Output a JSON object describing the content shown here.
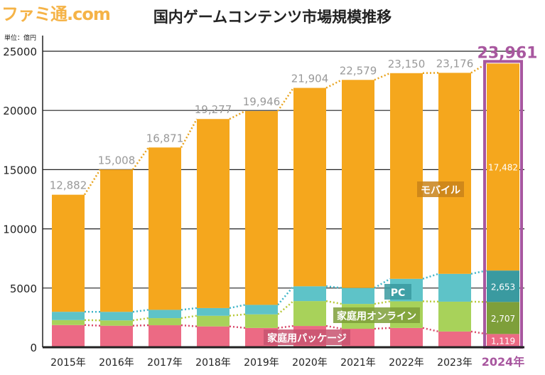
{
  "logo": "ファミ通.com",
  "chart_data": {
    "type": "bar",
    "stacked": true,
    "title": "国内ゲームコンテンツ市場規模推移",
    "unit_label": "単位：億円",
    "ylim": [
      0,
      25000
    ],
    "yticks": [
      "0",
      "5000",
      "10000",
      "15000",
      "20000",
      "25000"
    ],
    "grid": true,
    "categories": [
      "2015年",
      "2016年",
      "2017年",
      "2018年",
      "2019年",
      "2020年",
      "2021年",
      "2022年",
      "2023年",
      "2024年"
    ],
    "highlight_category": "2024年",
    "series": [
      {
        "name": "家庭用パッケージ",
        "color": "#ec6a84",
        "values": [
          1875,
          1820,
          1860,
          1760,
          1630,
          1800,
          1560,
          1630,
          1330,
          1119
        ]
      },
      {
        "name": "家庭用オンライン",
        "color": "#a8d25a",
        "values": [
          420,
          450,
          600,
          900,
          1150,
          2100,
          2100,
          2250,
          2520,
          2707
        ]
      },
      {
        "name": "PC",
        "color": "#5ec3c8",
        "values": [
          700,
          720,
          700,
          650,
          800,
          1250,
          1350,
          1900,
          2350,
          2653
        ]
      },
      {
        "name": "モバイル",
        "color": "#f5a71d",
        "values": [
          9887,
          12018,
          13711,
          15967,
          16366,
          16754,
          17569,
          17370,
          16976,
          17482
        ]
      }
    ],
    "totals": [
      "12,882",
      "15,008",
      "16,871",
      "19,277",
      "19,946",
      "21,904",
      "22,579",
      "23,150",
      "23,176",
      "23,961"
    ],
    "data_labels_2024": [
      "1,119",
      "2,707",
      "2,653",
      "17,482"
    ],
    "highlight_color": "#a8579f"
  }
}
